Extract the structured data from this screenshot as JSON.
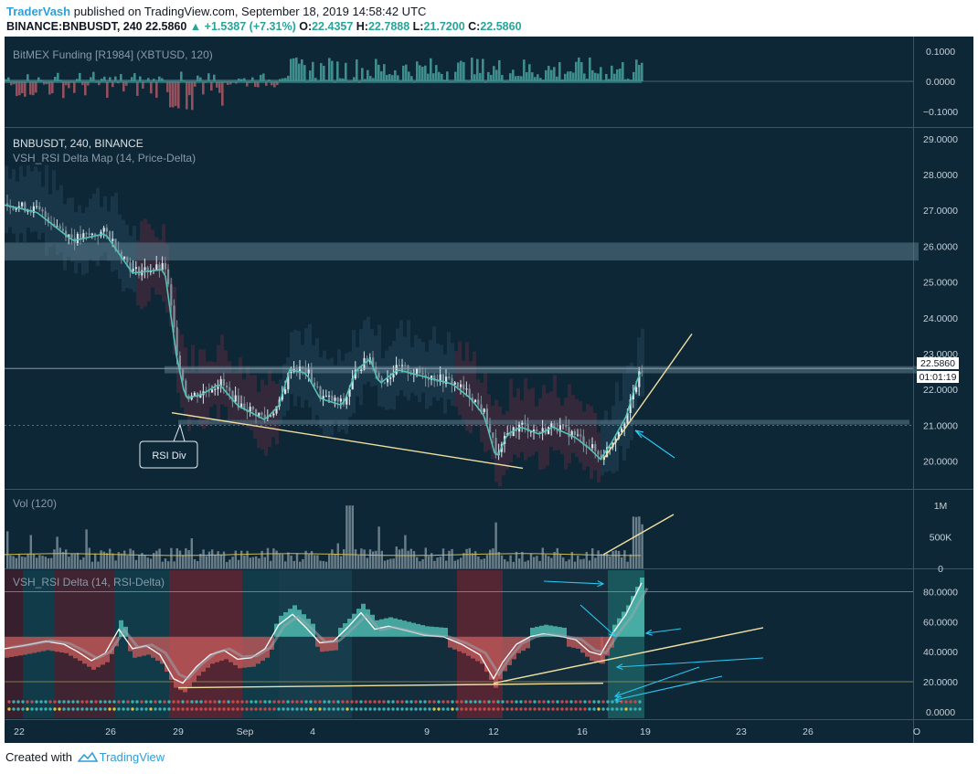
{
  "header": {
    "author": "TraderVash",
    "published": " published on TradingView.com, September 18, 2019 14:58:42 UTC"
  },
  "symbol_line": {
    "symbol": "BINANCE:BNBUSDT, 240",
    "last": "22.5860",
    "change": "+1.5387 (+7.31%)",
    "open_label": "O:",
    "open": "22.4357",
    "high_label": "H:",
    "high": "22.7888",
    "low_label": "L:",
    "low": "21.7200",
    "close_label": "C:",
    "close": "22.5860"
  },
  "colors": {
    "background": "#0e2737",
    "bull": "#53c2b7",
    "bear": "#c05a5a",
    "trendline": "#f0e0a0",
    "arrow": "#29c8f0"
  },
  "annotation": {
    "callout": "RSI Div"
  },
  "footer": {
    "created_with": "Created with",
    "brand": "TradingView"
  },
  "chart_data": [
    {
      "type": "bar",
      "title": "BitMEX Funding [R1984] (XBTUSD, 120)",
      "ylim": [
        -0.13,
        0.11
      ],
      "y_ticks": [
        "0.1000",
        "0.0000",
        "−0.1000"
      ],
      "y_tick_values": [
        0.1,
        0.0,
        -0.1
      ]
    },
    {
      "type": "candlestick",
      "title": "BNBUSDT, 240, BINANCE",
      "subtitle": "VSH_RSI Delta Map (14, Price-Delta)",
      "ylim": [
        19.3,
        29.3
      ],
      "y_ticks": [
        "29.0000",
        "28.0000",
        "27.0000",
        "26.0000",
        "25.0000",
        "24.0000",
        "23.0000",
        "22.0000",
        "21.0000",
        "20.0000"
      ],
      "y_tick_values": [
        29,
        28,
        27,
        26,
        25,
        24,
        23,
        22,
        21,
        20
      ],
      "price_label": "22.5860",
      "price_value": 22.586,
      "countdown": "01:01:19",
      "zones": [
        {
          "from": 25.6,
          "to": 26.1
        },
        {
          "from": 22.45,
          "to": 22.65
        },
        {
          "from": 21.02,
          "to": 21.15
        }
      ],
      "key_levels": [
        {
          "date": "Aug 22",
          "value": 27.2
        },
        {
          "date": "Aug 26",
          "value": 26.2
        },
        {
          "date": "Aug 28",
          "value": 25.5
        },
        {
          "date": "Aug 29",
          "value": 21.8
        },
        {
          "date": "Sep 1",
          "value": 21.3
        },
        {
          "date": "Sep 3",
          "value": 22.5
        },
        {
          "date": "Sep 5",
          "value": 21.4
        },
        {
          "date": "Sep 6",
          "value": 22.5
        },
        {
          "date": "Sep 9",
          "value": 22.2
        },
        {
          "date": "Sep 11",
          "value": 21.2
        },
        {
          "date": "Sep 12",
          "value": 20.2
        },
        {
          "date": "Sep 13",
          "value": 20.8
        },
        {
          "date": "Sep 15",
          "value": 20.9
        },
        {
          "date": "Sep 16",
          "value": 20.5
        },
        {
          "date": "Sep 17",
          "value": 20.1
        },
        {
          "date": "Sep 18",
          "value": 22.586
        }
      ]
    },
    {
      "type": "bar",
      "title": "Vol (120)",
      "ylim": [
        0,
        1250000
      ],
      "y_ticks": [
        "1M",
        "500K",
        "0"
      ],
      "y_tick_values": [
        1000000,
        500000,
        0
      ]
    },
    {
      "type": "area",
      "title": "VSH_RSI Delta (14, RSI-Delta)",
      "ylim": [
        -5,
        95
      ],
      "y_ticks": [
        "80.0000",
        "60.0000",
        "40.0000",
        "20.0000",
        "0.0000"
      ],
      "y_tick_values": [
        80,
        60,
        40,
        20,
        0
      ],
      "levels": [
        80,
        20
      ],
      "x_ticks": [
        "22",
        "26",
        "29",
        "Sep",
        "4",
        "9",
        "12",
        "16",
        "19",
        "23",
        "26",
        "O"
      ]
    }
  ]
}
